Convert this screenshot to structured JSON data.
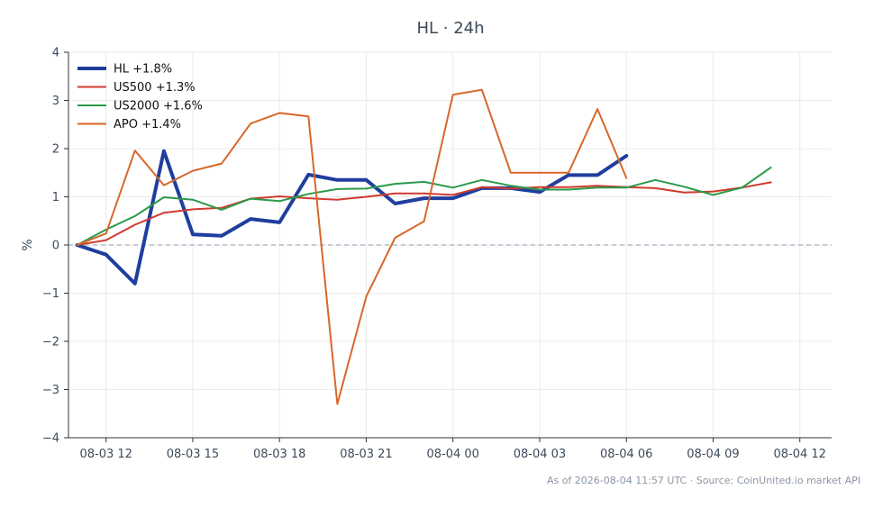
{
  "chart_data": {
    "type": "line",
    "title": "HL · 24h",
    "ylabel": "%",
    "xlabel": "",
    "ylim": [
      -4,
      4
    ],
    "xlim": [
      -1.3,
      25.1
    ],
    "yticks": [
      -4,
      -3,
      -2,
      -1,
      0,
      1,
      2,
      3,
      4
    ],
    "ytick_labels": [
      "−4",
      "−3",
      "−2",
      "−1",
      "0",
      "1",
      "2",
      "3",
      "4"
    ],
    "xticks": [
      0,
      3,
      6,
      9,
      12,
      15,
      18,
      21,
      24
    ],
    "xtick_labels": [
      "08-03 12",
      "08-03 15",
      "08-03 18",
      "08-03 21",
      "08-04 00",
      "08-04 03",
      "08-04 06",
      "08-04 09",
      "08-04 12"
    ],
    "grid": true,
    "legend_position": "top-left",
    "zero_line": true,
    "series": [
      {
        "name": "HL +1.8%",
        "color": "#1f3e9e",
        "width": 4,
        "x": [
          -1,
          0,
          1,
          2,
          3,
          4,
          5,
          6,
          7,
          8,
          9,
          10,
          11,
          12,
          13,
          14,
          15,
          16,
          17,
          18
        ],
        "y": [
          0.0,
          -0.2,
          -0.8,
          1.95,
          0.22,
          0.19,
          0.54,
          0.47,
          1.46,
          1.35,
          1.35,
          0.86,
          0.97,
          0.97,
          1.18,
          1.18,
          1.1,
          1.45,
          1.45,
          1.85
        ]
      },
      {
        "name": "US500 +1.3%",
        "color": "#d03a2f",
        "width": 2,
        "x": [
          -1,
          0,
          1,
          2,
          3,
          4,
          5,
          6,
          7,
          8,
          9,
          10,
          11,
          12,
          13,
          14,
          15,
          16,
          17,
          18,
          19,
          20,
          21,
          22,
          23
        ],
        "y": [
          0.0,
          0.1,
          0.42,
          0.67,
          0.74,
          0.77,
          0.96,
          1.01,
          0.97,
          0.94,
          1.0,
          1.07,
          1.07,
          1.04,
          1.2,
          1.17,
          1.2,
          1.2,
          1.23,
          1.2,
          1.18,
          1.09,
          1.11,
          1.19,
          1.3
        ]
      },
      {
        "name": "US2000 +1.6%",
        "color": "#2a9a4a",
        "width": 2,
        "x": [
          -1,
          0,
          1,
          2,
          3,
          4,
          5,
          6,
          7,
          8,
          9,
          10,
          11,
          12,
          13,
          14,
          15,
          16,
          17,
          18,
          19,
          20,
          21,
          22,
          23
        ],
        "y": [
          0.0,
          0.32,
          0.6,
          0.99,
          0.94,
          0.73,
          0.96,
          0.91,
          1.06,
          1.16,
          1.17,
          1.27,
          1.31,
          1.19,
          1.35,
          1.23,
          1.15,
          1.15,
          1.19,
          1.19,
          1.35,
          1.21,
          1.04,
          1.19,
          1.61
        ]
      },
      {
        "name": "APO +1.4%",
        "color": "#d7672a",
        "width": 2,
        "x": [
          -1,
          0,
          1,
          2,
          3,
          4,
          5,
          6,
          7,
          8,
          9,
          10,
          11,
          12,
          13,
          14,
          15,
          16,
          17,
          18
        ],
        "y": [
          0.0,
          0.24,
          1.96,
          1.24,
          1.54,
          1.69,
          2.52,
          2.74,
          2.67,
          -3.3,
          -1.07,
          0.15,
          0.49,
          3.12,
          3.22,
          1.5,
          1.5,
          1.5,
          2.82,
          1.39
        ]
      }
    ]
  },
  "footer": {
    "text": "As of 2026-08-04 11:57 UTC · Source: CoinUnited.io market API"
  }
}
